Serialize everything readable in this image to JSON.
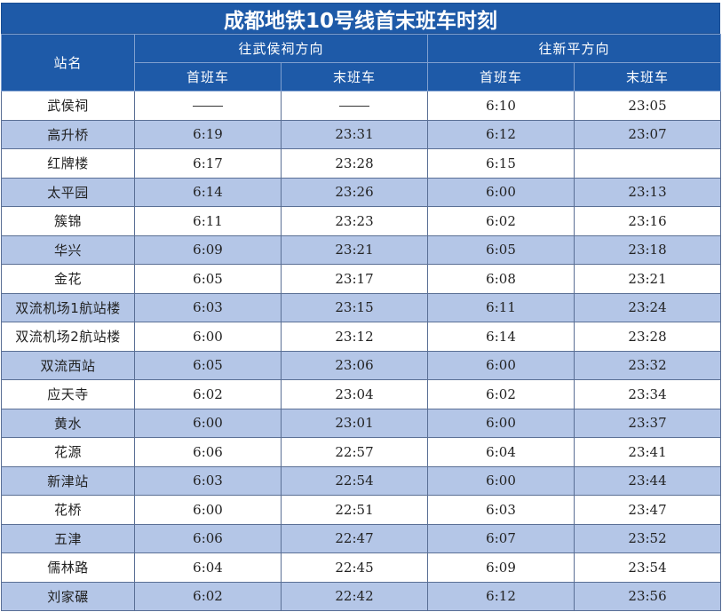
{
  "title": "成都地铁10号线首末班车时刻",
  "header": {
    "station_col": "站名",
    "dir1": "往武侯祠方向",
    "dir2": "往新平方向",
    "first": "首班车",
    "last": "末班车"
  },
  "rows": [
    {
      "station": "武侯祠",
      "d1_first": "",
      "d1_last": "",
      "d2_first": "6:10",
      "d2_last": "23:05"
    },
    {
      "station": "高升桥",
      "d1_first": "6:19",
      "d1_last": "23:31",
      "d2_first": "6:12",
      "d2_last": "23:07"
    },
    {
      "station": "红牌楼",
      "d1_first": "6:17",
      "d1_last": "23:28",
      "d2_first": "6:15",
      "d2_last": ""
    },
    {
      "station": "太平园",
      "d1_first": "6:14",
      "d1_last": "23:26",
      "d2_first": "6:00",
      "d2_last": "23:13"
    },
    {
      "station": "簇锦",
      "d1_first": "6:11",
      "d1_last": "23:23",
      "d2_first": "6:02",
      "d2_last": "23:16"
    },
    {
      "station": "华兴",
      "d1_first": "6:09",
      "d1_last": "23:21",
      "d2_first": "6:05",
      "d2_last": "23:18"
    },
    {
      "station": "金花",
      "d1_first": "6:05",
      "d1_last": "23:17",
      "d2_first": "6:08",
      "d2_last": "23:21"
    },
    {
      "station": "双流机场1航站楼",
      "d1_first": "6:03",
      "d1_last": "23:15",
      "d2_first": "6:11",
      "d2_last": "23:24"
    },
    {
      "station": "双流机场2航站楼",
      "d1_first": "6:00",
      "d1_last": "23:12",
      "d2_first": "6:14",
      "d2_last": "23:28"
    },
    {
      "station": "双流西站",
      "d1_first": "6:05",
      "d1_last": "23:06",
      "d2_first": "6:00",
      "d2_last": "23:32"
    },
    {
      "station": "应天寺",
      "d1_first": "6:02",
      "d1_last": "23:04",
      "d2_first": "6:02",
      "d2_last": "23:34"
    },
    {
      "station": "黄水",
      "d1_first": "6:00",
      "d1_last": "23:01",
      "d2_first": "6:00",
      "d2_last": "23:37"
    },
    {
      "station": "花源",
      "d1_first": "6:06",
      "d1_last": "22:57",
      "d2_first": "6:04",
      "d2_last": "23:41"
    },
    {
      "station": "新津站",
      "d1_first": "6:03",
      "d1_last": "22:54",
      "d2_first": "6:00",
      "d2_last": "23:44"
    },
    {
      "station": "花桥",
      "d1_first": "6:00",
      "d1_last": "22:51",
      "d2_first": "6:03",
      "d2_last": "23:47"
    },
    {
      "station": "五津",
      "d1_first": "6:06",
      "d1_last": "22:47",
      "d2_first": "6:07",
      "d2_last": "23:52"
    },
    {
      "station": "儒林路",
      "d1_first": "6:04",
      "d1_last": "22:45",
      "d2_first": "6:09",
      "d2_last": "23:54"
    },
    {
      "station": "刘家碾",
      "d1_first": "6:02",
      "d1_last": "22:42",
      "d2_first": "6:12",
      "d2_last": "23:56"
    }
  ]
}
